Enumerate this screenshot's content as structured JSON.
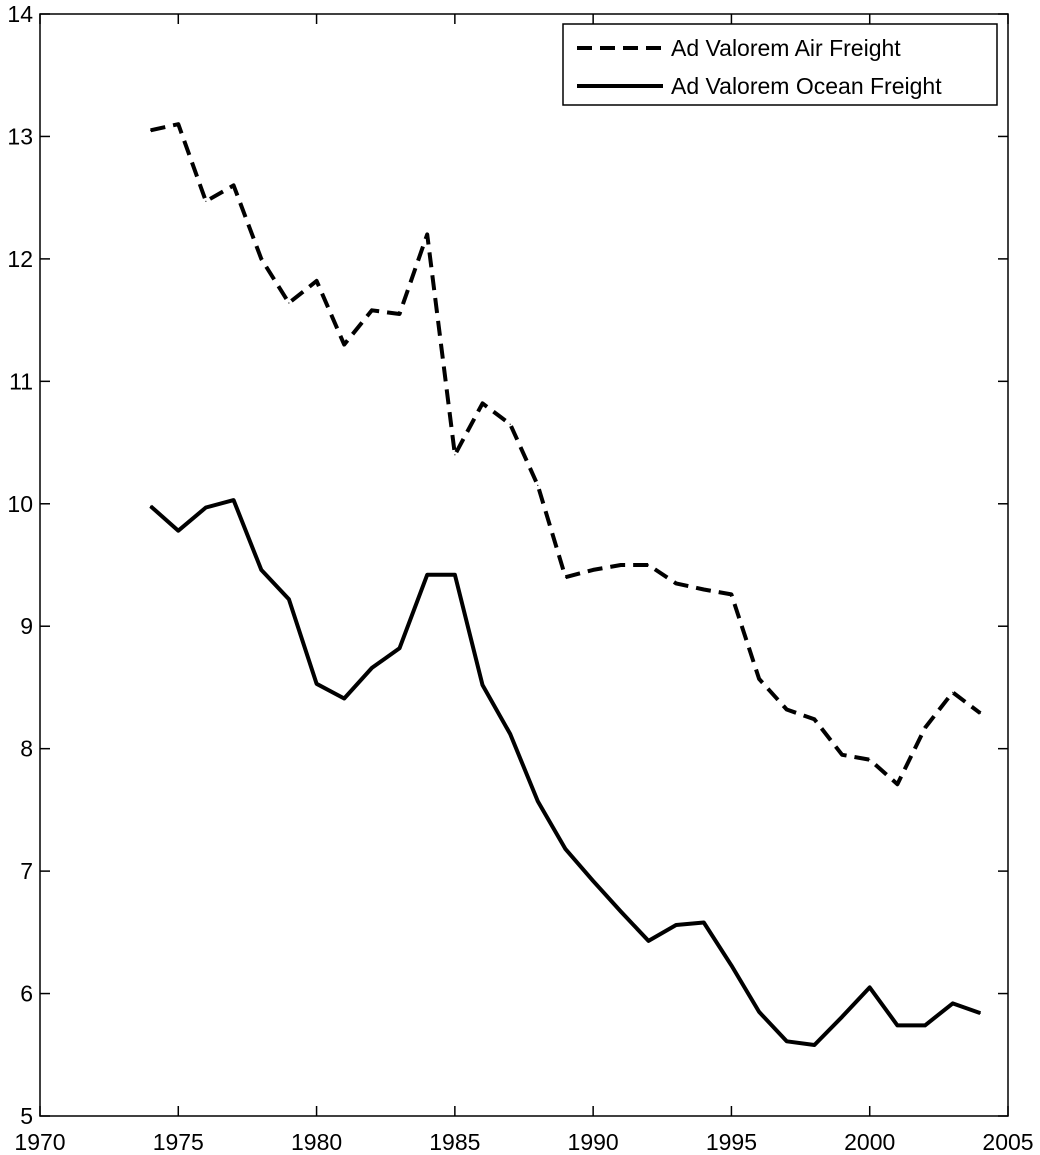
{
  "chart_data": {
    "type": "line",
    "title": "",
    "xlabel": "",
    "ylabel": "",
    "xlim": [
      1970,
      2005
    ],
    "ylim": [
      5,
      14
    ],
    "xticks": [
      1970,
      1975,
      1980,
      1985,
      1990,
      1995,
      2000,
      2005
    ],
    "yticks": [
      5,
      6,
      7,
      8,
      9,
      10,
      11,
      12,
      13,
      14
    ],
    "grid": false,
    "legend_position": "top-right",
    "x": [
      1974,
      1975,
      1976,
      1977,
      1978,
      1979,
      1980,
      1981,
      1982,
      1983,
      1984,
      1985,
      1986,
      1987,
      1988,
      1989,
      1990,
      1991,
      1992,
      1993,
      1994,
      1995,
      1996,
      1997,
      1998,
      1999,
      2000,
      2001,
      2002,
      2003,
      2004
    ],
    "series": [
      {
        "name": "Ad Valorem Air Freight",
        "style": "dashed",
        "color": "#000000",
        "values": [
          13.05,
          13.1,
          12.47,
          12.6,
          12.0,
          11.64,
          11.82,
          11.3,
          11.58,
          11.55,
          12.2,
          10.4,
          10.82,
          10.65,
          10.15,
          9.4,
          9.46,
          9.5,
          9.5,
          9.35,
          9.3,
          9.26,
          8.57,
          8.32,
          8.24,
          7.95,
          7.91,
          7.71,
          8.17,
          8.46,
          8.29
        ]
      },
      {
        "name": "Ad Valorem Ocean Freight",
        "style": "solid",
        "color": "#000000",
        "values": [
          9.98,
          9.78,
          9.97,
          10.03,
          9.46,
          9.22,
          8.53,
          8.41,
          8.66,
          8.82,
          9.42,
          9.42,
          8.52,
          8.12,
          7.57,
          7.18,
          6.92,
          6.67,
          6.43,
          6.56,
          6.58,
          6.23,
          5.85,
          5.61,
          5.58,
          5.81,
          6.05,
          5.74,
          5.74,
          5.92,
          5.84
        ]
      }
    ]
  }
}
